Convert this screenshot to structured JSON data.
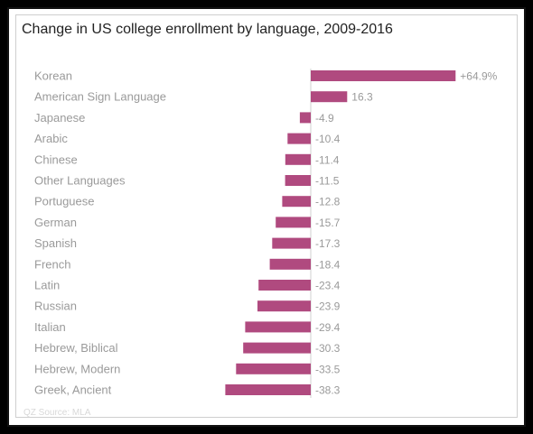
{
  "chart_data": {
    "type": "bar",
    "orientation": "horizontal",
    "title": "Change in US college enrollment by language, 2009-2016",
    "categories": [
      "Korean",
      "American Sign Language",
      "Japanese",
      "Arabic",
      "Chinese",
      "Other Languages",
      "Portuguese",
      "German",
      "Spanish",
      "French",
      "Latin",
      "Russian",
      "Italian",
      "Hebrew, Biblical",
      "Hebrew, Modern",
      "Greek, Ancient"
    ],
    "values": [
      64.9,
      16.3,
      -4.9,
      -10.4,
      -11.4,
      -11.5,
      -12.8,
      -15.7,
      -17.3,
      -18.4,
      -23.4,
      -23.9,
      -29.4,
      -30.3,
      -33.5,
      -38.3
    ],
    "value_labels": [
      "+64.9%",
      "16.3",
      "-4.9",
      "-10.4",
      "-11.4",
      "-11.5",
      "-12.8",
      "-15.7",
      "-17.3",
      "-18.4",
      "-23.4",
      "-23.9",
      "-29.4",
      "-30.3",
      "-33.5",
      "-38.3"
    ],
    "bar_color": "#b04a7f",
    "xlim": [
      -40,
      66
    ],
    "grid": false,
    "legend": "none"
  },
  "footer": "QZ Source: MLA"
}
